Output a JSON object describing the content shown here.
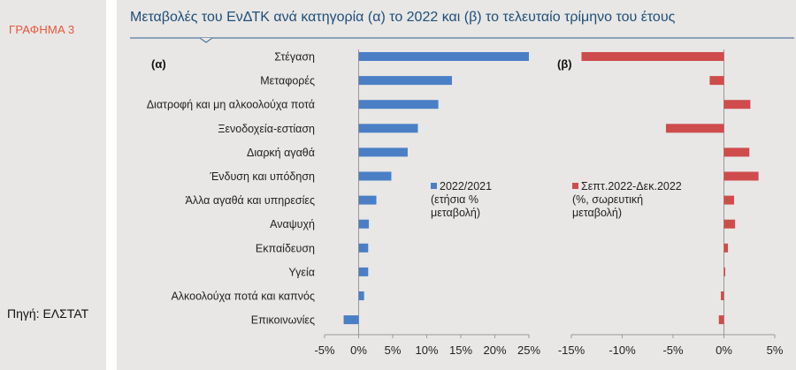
{
  "graph_label": "ΓΡΑΦΗΜΑ 3",
  "source": "Πηγή: ΕΛΣΤΑΤ",
  "colors": {
    "blue": "#4a7fc6",
    "red": "#cf4c4c",
    "title": "#1f4e79",
    "accent": "#e8573c"
  },
  "chart_data": [
    {
      "type": "bar",
      "orientation": "horizontal",
      "title": "Μεταβολές του ΕνΔΤΚ ανά κατηγορία (α) το 2022 και (β) το τελευταίο τρίμηνο του έτους",
      "panel_label": "(α)",
      "categories": [
        "Στέγαση",
        "Μεταφορές",
        "Διατροφή και μη αλκοολούχα ποτά",
        "Ξενοδοχεία-εστίαση",
        "Διαρκή αγαθά",
        "Ένδυση και υπόδηση",
        "Άλλα αγαθά και υπηρεσίες",
        "Αναψυχή",
        "Εκπαίδευση",
        "Υγεία",
        "Αλκοολούχα ποτά και καπνός",
        "Επικοινωνίες"
      ],
      "series": [
        {
          "name": "2022/2021 (ετήσια % μεταβολή)",
          "values": [
            25.0,
            13.7,
            11.7,
            8.7,
            7.2,
            4.8,
            2.6,
            1.5,
            1.4,
            1.4,
            0.8,
            -2.2
          ]
        }
      ],
      "legend_lines": [
        "2022/2021",
        "(ετήσια %",
        "μεταβολή)"
      ],
      "xlim": [
        -5,
        25
      ],
      "xticks": [
        "-5%",
        "0%",
        "5%",
        "10%",
        "15%",
        "20%",
        "25%"
      ],
      "xtick_values": [
        -5,
        0,
        5,
        10,
        15,
        20,
        25
      ],
      "grid": false,
      "legend_position": "right"
    },
    {
      "type": "bar",
      "orientation": "horizontal",
      "panel_label": "(β)",
      "categories": [
        "Στέγαση",
        "Μεταφορές",
        "Διατροφή και μη αλκοολούχα ποτά",
        "Ξενοδοχεία-εστίαση",
        "Διαρκή αγαθά",
        "Ένδυση και υπόδηση",
        "Άλλα αγαθά και υπηρεσίες",
        "Αναψυχή",
        "Εκπαίδευση",
        "Υγεία",
        "Αλκοολούχα ποτά και καπνός",
        "Επικοινωνίες"
      ],
      "series": [
        {
          "name": "Σεπτ.2022-Δεκ.2022 (%, σωρευτική μεταβολή)",
          "values": [
            -14.0,
            -1.4,
            2.6,
            -5.7,
            2.5,
            3.4,
            1.0,
            1.1,
            0.4,
            0.1,
            -0.3,
            -0.5
          ]
        }
      ],
      "legend_lines": [
        "Σεπτ.2022-Δεκ.2022",
        "(%, σωρευτική",
        "μεταβολή)"
      ],
      "xlim": [
        -15,
        5
      ],
      "xticks": [
        "-15%",
        "-10%",
        "-5%",
        "0%",
        "5%"
      ],
      "xtick_values": [
        -15,
        -10,
        -5,
        0,
        5
      ],
      "grid": false,
      "legend_position": "left"
    }
  ]
}
